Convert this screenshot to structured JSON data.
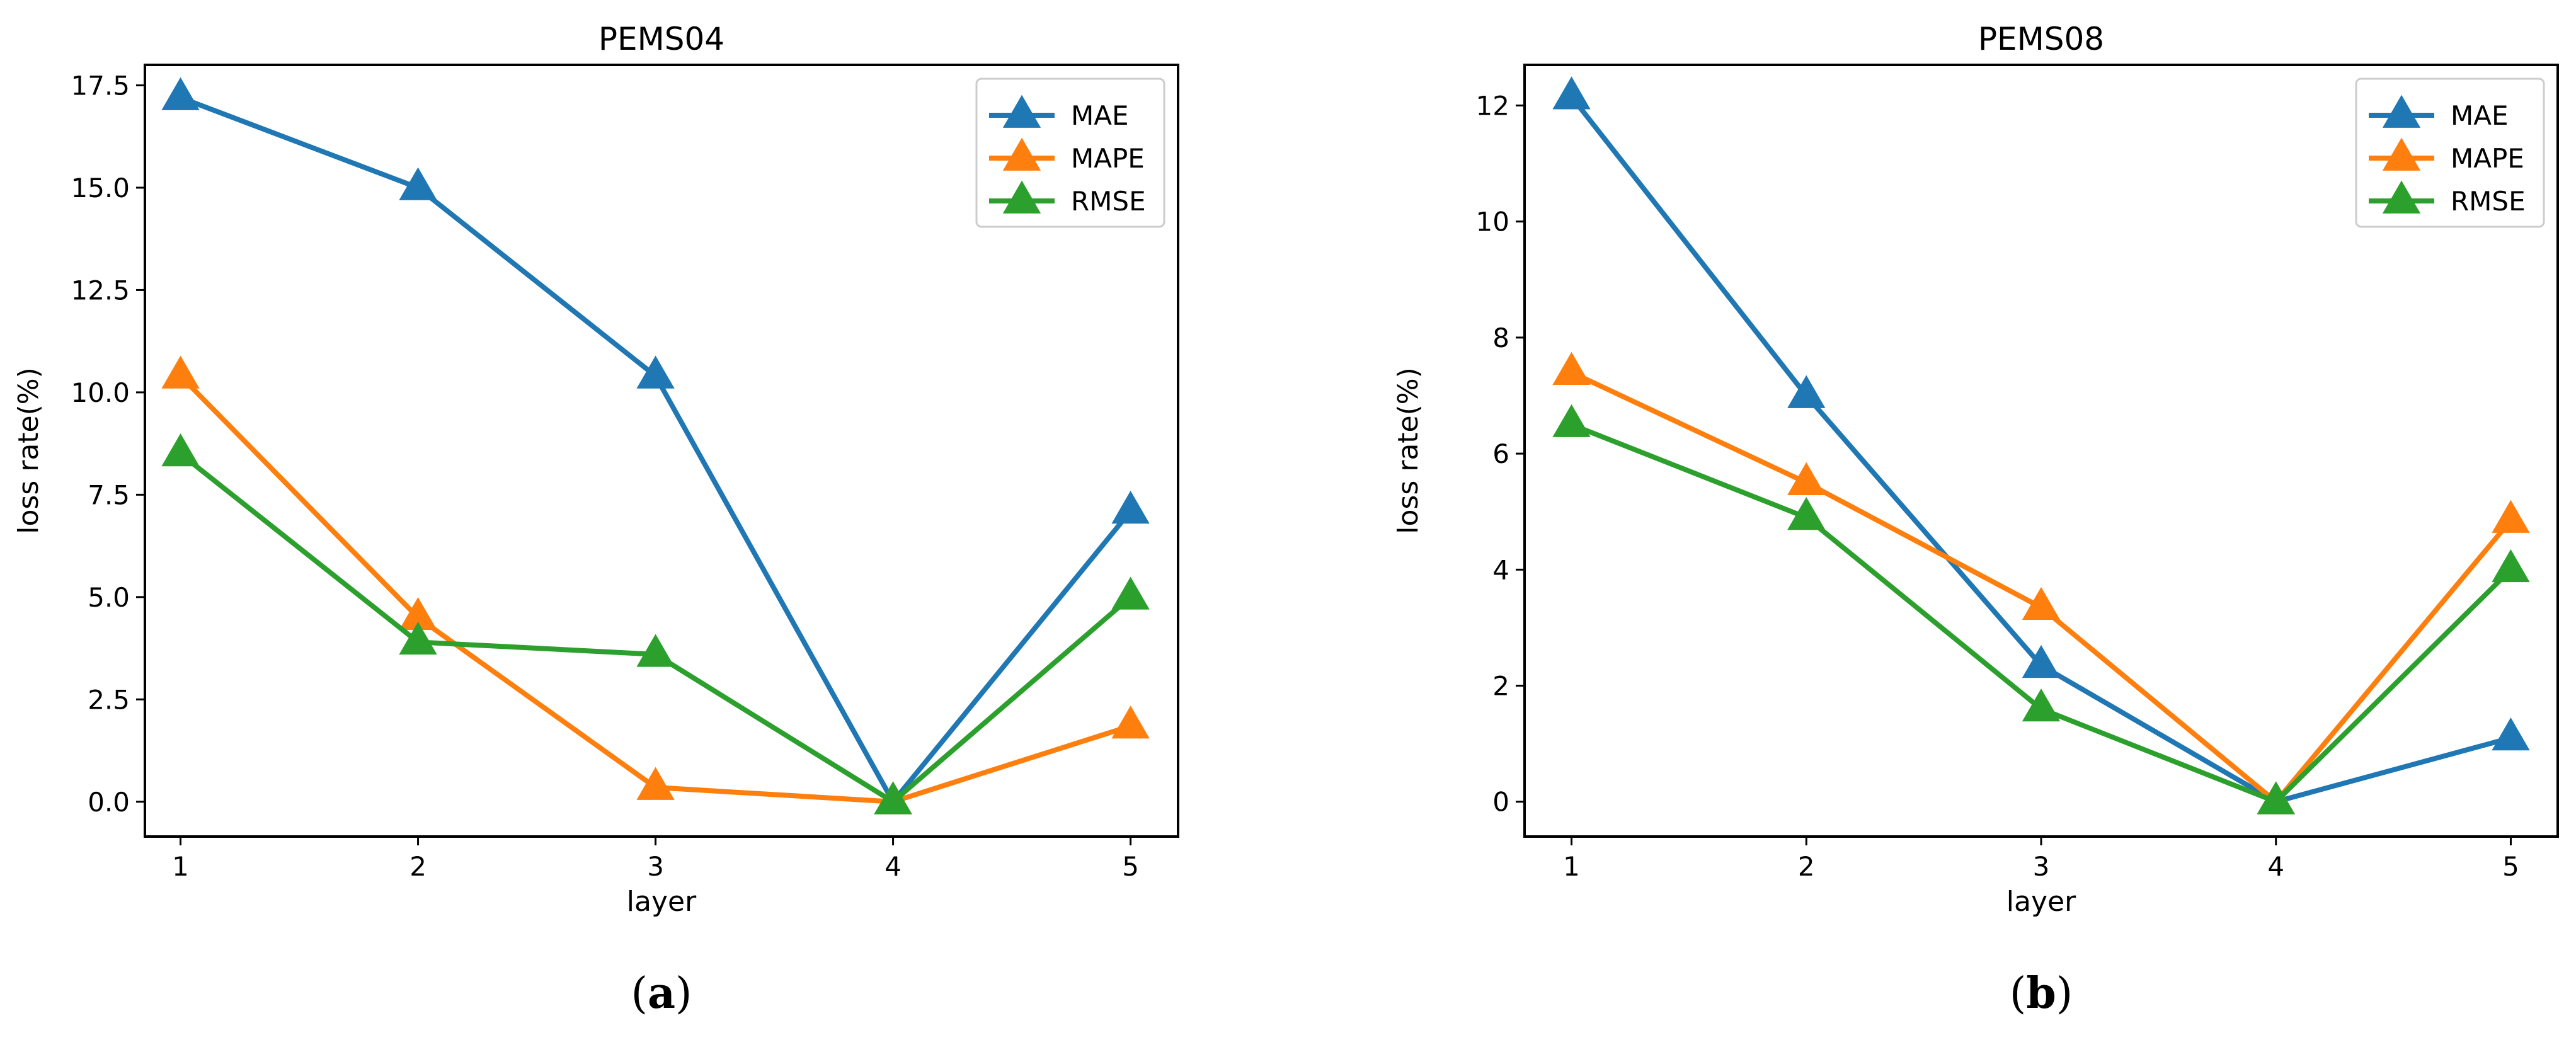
{
  "series_styles": {
    "MAE": "#1f77b4",
    "MAPE": "#ff7f0e",
    "RMSE": "#2ca02c"
  },
  "chart_data": [
    {
      "type": "line",
      "title": "PEMS04",
      "xlabel": "layer",
      "ylabel": "loss rate(%)",
      "x": [
        1,
        2,
        3,
        4,
        5
      ],
      "xticks": [
        "1",
        "2",
        "3",
        "4",
        "5"
      ],
      "yticks": [
        "0.0",
        "2.5",
        "5.0",
        "7.5",
        "10.0",
        "12.5",
        "15.0",
        "17.5"
      ],
      "ytick_values": [
        0,
        2.5,
        5,
        7.5,
        10,
        12.5,
        15,
        17.5
      ],
      "xlim": [
        0.85,
        5.2
      ],
      "ylim": [
        -0.85,
        18.0
      ],
      "legend": "top-right",
      "marker": "triangle",
      "series": [
        {
          "name": "MAE",
          "values": [
            17.2,
            15.0,
            10.4,
            0.0,
            7.1
          ]
        },
        {
          "name": "MAPE",
          "values": [
            10.4,
            4.5,
            0.35,
            0.0,
            1.85
          ]
        },
        {
          "name": "RMSE",
          "values": [
            8.5,
            3.9,
            3.6,
            0.0,
            5.0
          ]
        }
      ],
      "caption_letter": "a",
      "caption_open": "(",
      "caption_close": ")"
    },
    {
      "type": "line",
      "title": "PEMS08",
      "xlabel": "layer",
      "ylabel": "loss rate(%)",
      "x": [
        1,
        2,
        3,
        4,
        5
      ],
      "xticks": [
        "1",
        "2",
        "3",
        "4",
        "5"
      ],
      "yticks": [
        "0",
        "2",
        "4",
        "6",
        "8",
        "10",
        "12"
      ],
      "ytick_values": [
        0,
        2,
        4,
        6,
        8,
        10,
        12
      ],
      "xlim": [
        0.8,
        5.2
      ],
      "ylim": [
        -0.6,
        12.7
      ],
      "legend": "top-right",
      "marker": "triangle",
      "series": [
        {
          "name": "MAE",
          "values": [
            12.15,
            7.0,
            2.35,
            0.0,
            1.1
          ]
        },
        {
          "name": "MAPE",
          "values": [
            7.4,
            5.5,
            3.35,
            0.0,
            4.85
          ]
        },
        {
          "name": "RMSE",
          "values": [
            6.5,
            4.9,
            1.6,
            0.0,
            4.0
          ]
        }
      ],
      "caption_letter": "b",
      "caption_open": "(",
      "caption_close": ")"
    }
  ]
}
